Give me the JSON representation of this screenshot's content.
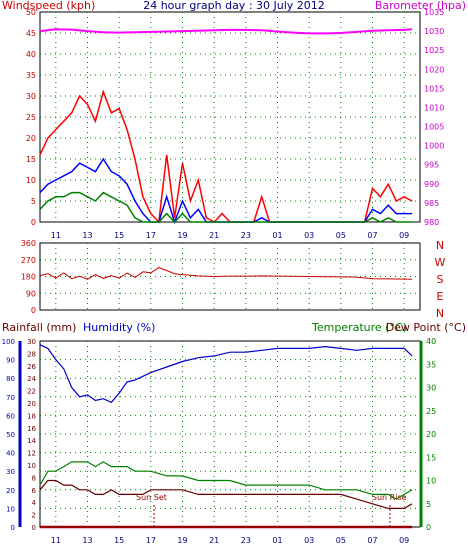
{
  "chart_data": [
    {
      "type": "line",
      "title": "24 hour graph day : 30 July 2012",
      "left_axis_label": "Windspeed (kph)",
      "right_axis_label": "Barometer (hpa)",
      "x_tick_labels": [
        "11",
        "13",
        "15",
        "17",
        "19",
        "21",
        "23",
        "01",
        "03",
        "05",
        "07",
        "09"
      ],
      "left_ticks": [
        0,
        5,
        10,
        15,
        20,
        25,
        30,
        35,
        40,
        45,
        50
      ],
      "left_ylim": [
        0,
        50
      ],
      "right_ticks": [
        980,
        985,
        990,
        995,
        1000,
        1005,
        1010,
        1015,
        1020,
        1025,
        1030,
        1035
      ],
      "right_ylim": [
        980,
        1035
      ],
      "grid": true,
      "series": [
        {
          "role": "wind-gust",
          "color": "#ff0000",
          "axis": "left",
          "x": [
            0,
            0.5,
            1,
            1.5,
            2,
            2.5,
            3,
            3.5,
            4,
            4.5,
            5,
            5.5,
            6,
            6.5,
            7,
            7.5,
            8,
            8.5,
            9,
            9.5,
            10,
            10.5,
            11,
            11.5,
            12,
            12.5,
            13,
            13.5,
            14,
            14.5,
            15,
            15.5,
            16,
            16.5,
            17,
            17.5,
            18,
            18.5,
            19,
            19.5,
            20,
            20.5,
            21,
            21.5,
            22,
            22.5,
            23,
            23.5
          ],
          "values": [
            16,
            20,
            22,
            24,
            26,
            30,
            28,
            24,
            31,
            26,
            27,
            22,
            15,
            6,
            2,
            0,
            16,
            1,
            14,
            5,
            10,
            1,
            0,
            2,
            0,
            0,
            0,
            0,
            6,
            0,
            0,
            0,
            0,
            0,
            0,
            0,
            0,
            0,
            0,
            0,
            0,
            0,
            8,
            6,
            9,
            5,
            6,
            5
          ]
        },
        {
          "role": "wind-average",
          "color": "#0000ff",
          "axis": "left",
          "x": [
            0,
            0.5,
            1,
            1.5,
            2,
            2.5,
            3,
            3.5,
            4,
            4.5,
            5,
            5.5,
            6,
            6.5,
            7,
            7.5,
            8,
            8.5,
            9,
            9.5,
            10,
            10.5,
            11,
            11.5,
            12,
            12.5,
            13,
            13.5,
            14,
            14.5,
            15,
            15.5,
            16,
            16.5,
            17,
            17.5,
            18,
            18.5,
            19,
            19.5,
            20,
            20.5,
            21,
            21.5,
            22,
            22.5,
            23,
            23.5
          ],
          "values": [
            7,
            9,
            10,
            11,
            12,
            14,
            13,
            12,
            15,
            12,
            11,
            9,
            5,
            2,
            0,
            0,
            6,
            0,
            5,
            1,
            3,
            0,
            0,
            0,
            0,
            0,
            0,
            0,
            1,
            0,
            0,
            0,
            0,
            0,
            0,
            0,
            0,
            0,
            0,
            0,
            0,
            0,
            3,
            2,
            4,
            2,
            2,
            2
          ]
        },
        {
          "role": "wind-calm",
          "color": "#008000",
          "axis": "left",
          "x": [
            0,
            0.5,
            1,
            1.5,
            2,
            2.5,
            3,
            3.5,
            4,
            4.5,
            5,
            5.5,
            6,
            6.5,
            7,
            7.5,
            8,
            8.5,
            9,
            9.5,
            10,
            10.5,
            11,
            11.5,
            12,
            12.5,
            13,
            13.5,
            14,
            14.5,
            15,
            15.5,
            16,
            16.5,
            17,
            17.5,
            18,
            18.5,
            19,
            19.5,
            20,
            20.5,
            21,
            21.5,
            22,
            22.5,
            23,
            23.5
          ],
          "values": [
            3,
            5,
            6,
            6,
            7,
            7,
            6,
            5,
            7,
            6,
            5,
            4,
            1,
            0,
            0,
            0,
            2,
            0,
            2,
            0,
            0,
            0,
            0,
            0,
            0,
            0,
            0,
            0,
            0,
            0,
            0,
            0,
            0,
            0,
            0,
            0,
            0,
            0,
            0,
            0,
            0,
            0,
            1,
            0,
            1,
            0,
            0,
            0
          ]
        },
        {
          "role": "barometer",
          "color": "#ff00ff",
          "axis": "right",
          "x": [
            0,
            1,
            2,
            3,
            4,
            5,
            6,
            7,
            8,
            9,
            10,
            11,
            12,
            13,
            14,
            15,
            16,
            17,
            18,
            19,
            20,
            21,
            22,
            23,
            23.5
          ],
          "values": [
            1030,
            1030.5,
            1030.4,
            1030,
            1029.7,
            1029.6,
            1029.7,
            1029.8,
            1029.9,
            1030,
            1030.1,
            1030.2,
            1030.3,
            1030.3,
            1030.2,
            1029.9,
            1029.6,
            1029.4,
            1029.4,
            1029.5,
            1029.8,
            1030.1,
            1030.2,
            1030.3,
            1030.5
          ]
        }
      ]
    },
    {
      "type": "line",
      "title": "",
      "left_ticks": [
        0,
        90,
        180,
        270,
        360
      ],
      "left_ylim": [
        0,
        360
      ],
      "right_labels": [
        "N",
        "W",
        "S",
        "E",
        "N"
      ],
      "x_tick_labels": [],
      "grid": true,
      "series": [
        {
          "role": "wind-direction",
          "color": "#cc0000",
          "x": [
            0,
            0.5,
            1,
            1.5,
            2,
            2.5,
            3,
            3.5,
            4,
            4.5,
            5,
            5.5,
            6,
            6.5,
            7,
            7.5,
            8,
            8.5,
            9,
            10,
            11,
            12,
            13,
            14,
            15,
            16,
            17,
            18,
            19,
            20,
            21,
            22,
            23,
            23.5
          ],
          "values": [
            185,
            195,
            172,
            200,
            168,
            182,
            165,
            190,
            170,
            185,
            172,
            198,
            175,
            205,
            200,
            228,
            212,
            195,
            190,
            183,
            180,
            182,
            182,
            183,
            182,
            181,
            180,
            179,
            178,
            177,
            168,
            167,
            166,
            165
          ]
        }
      ]
    },
    {
      "type": "line",
      "title": "",
      "left_axis_label_1": "Rainfall (mm)",
      "left_axis_label_2": "Humidity (%)",
      "right_axis_label_1": "Temperature (°C)",
      "right_axis_label_2": "Dew Point (°C)",
      "x_tick_labels": [
        "11",
        "13",
        "15",
        "17",
        "19",
        "21",
        "23",
        "01",
        "03",
        "05",
        "07",
        "09"
      ],
      "humidity_ticks": [
        0,
        10,
        20,
        30,
        40,
        50,
        60,
        70,
        80,
        90,
        100
      ],
      "humidity_ylim": [
        0,
        100
      ],
      "rain_ticks": [
        0,
        2,
        4,
        6,
        8,
        10,
        12,
        14,
        16,
        18,
        20,
        22,
        24,
        26,
        28,
        30
      ],
      "rain_ylim": [
        0,
        30
      ],
      "temp_ticks": [
        0,
        5,
        10,
        15,
        20,
        25,
        30,
        35,
        40
      ],
      "temp_ylim": [
        0,
        40
      ],
      "grid": true,
      "annotations": [
        {
          "text": "Sun Set",
          "x": 7.2
        },
        {
          "text": "Sun Rise",
          "x": 22.1
        }
      ],
      "series": [
        {
          "role": "humidity",
          "color": "#0000cc",
          "axis": "humidity",
          "x": [
            0,
            0.5,
            1,
            1.5,
            2,
            2.5,
            3,
            3.5,
            4,
            4.5,
            5,
            5.5,
            6,
            6.5,
            7,
            8,
            9,
            10,
            11,
            12,
            13,
            14,
            15,
            16,
            17,
            18,
            19,
            20,
            21,
            22,
            23,
            23.5
          ],
          "values": [
            98,
            96,
            90,
            85,
            75,
            70,
            71,
            68,
            69,
            67,
            72,
            78,
            79,
            81,
            83,
            86,
            89,
            91,
            92,
            94,
            94,
            95,
            96,
            96,
            96,
            97,
            96,
            95,
            96,
            96,
            96,
            92
          ]
        },
        {
          "role": "temperature",
          "color": "#008000",
          "axis": "temp",
          "x": [
            0,
            0.5,
            1,
            1.5,
            2,
            2.5,
            3,
            3.5,
            4,
            4.5,
            5,
            5.5,
            6,
            6.5,
            7,
            8,
            9,
            10,
            11,
            12,
            13,
            14,
            15,
            16,
            17,
            18,
            19,
            20,
            21,
            22,
            22.5,
            23,
            23.5
          ],
          "values": [
            9,
            12,
            12,
            13,
            14,
            14,
            14,
            13,
            14,
            13,
            13,
            13,
            12,
            12,
            12,
            11,
            11,
            10,
            10,
            10,
            9,
            9,
            9,
            9,
            9,
            8,
            8,
            8,
            7,
            7,
            6,
            7,
            8
          ]
        },
        {
          "role": "dew-point",
          "color": "#660000",
          "axis": "temp",
          "x": [
            0,
            0.5,
            1,
            1.5,
            2,
            2.5,
            3,
            3.5,
            4,
            4.5,
            5,
            5.5,
            6,
            6.5,
            7,
            8,
            9,
            10,
            11,
            12,
            13,
            14,
            15,
            16,
            17,
            18,
            19,
            20,
            21,
            22,
            22.5,
            23,
            23.5
          ],
          "values": [
            8,
            10,
            10,
            9,
            9,
            8,
            8,
            7,
            7,
            8,
            7,
            7,
            7,
            7,
            8,
            8,
            8,
            7,
            7,
            7,
            7,
            7,
            7,
            7,
            7,
            7,
            7,
            6,
            5,
            4,
            4,
            4,
            5
          ]
        },
        {
          "role": "rainfall",
          "color": "#990000",
          "axis": "rain",
          "x": [
            0,
            23.5
          ],
          "values": [
            0,
            0
          ]
        }
      ]
    }
  ]
}
